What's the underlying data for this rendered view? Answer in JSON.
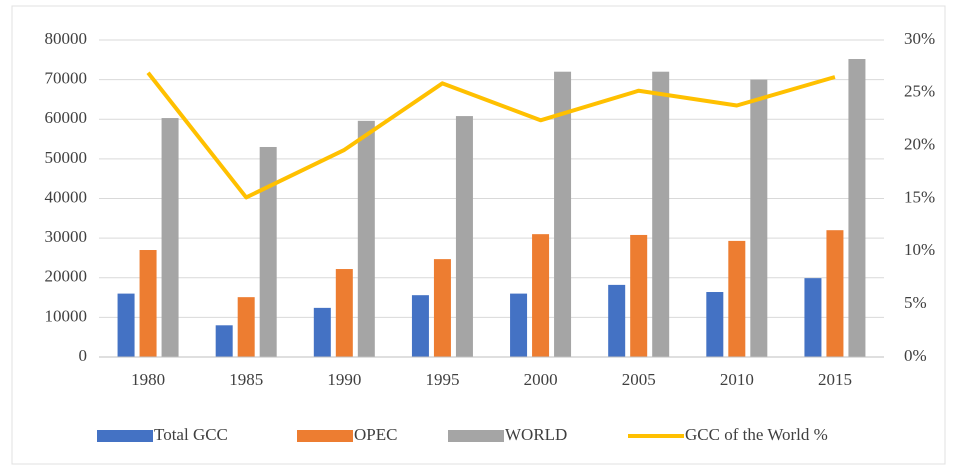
{
  "chart_data": {
    "type": "bar",
    "categories": [
      "1980",
      "1985",
      "1990",
      "1995",
      "2000",
      "2005",
      "2010",
      "2015"
    ],
    "series": [
      {
        "name": "Total GCC",
        "color": "#4472c4",
        "values": [
          16000,
          8000,
          12400,
          15600,
          16000,
          18200,
          16400,
          19900
        ]
      },
      {
        "name": "OPEC",
        "color": "#ed7d31",
        "values": [
          27000,
          15100,
          22200,
          24700,
          31000,
          30800,
          29300,
          32000
        ]
      },
      {
        "name": "WORLD",
        "color": "#a5a5a5",
        "values": [
          60300,
          53000,
          59600,
          60800,
          72000,
          72000,
          70000,
          75200
        ]
      },
      {
        "name": "GCC of the World %",
        "color": "#ffc000",
        "type": "line",
        "axis": "y2",
        "values": [
          26.9,
          15.1,
          19.6,
          25.9,
          22.4,
          25.2,
          23.8,
          26.5
        ]
      }
    ],
    "ylim": [
      0,
      80000
    ],
    "yticks": [
      0,
      10000,
      20000,
      30000,
      40000,
      50000,
      60000,
      70000,
      80000
    ],
    "y2lim": [
      0,
      30
    ],
    "y2ticks": [
      {
        "value": 0,
        "label": "0%"
      },
      {
        "value": 5,
        "label": "5%"
      },
      {
        "value": 10,
        "label": "10%"
      },
      {
        "value": 15,
        "label": "15%"
      },
      {
        "value": 20,
        "label": "20%"
      },
      {
        "value": 25,
        "label": "25%"
      },
      {
        "value": 30,
        "label": "30%"
      }
    ],
    "legend": "bottom"
  }
}
